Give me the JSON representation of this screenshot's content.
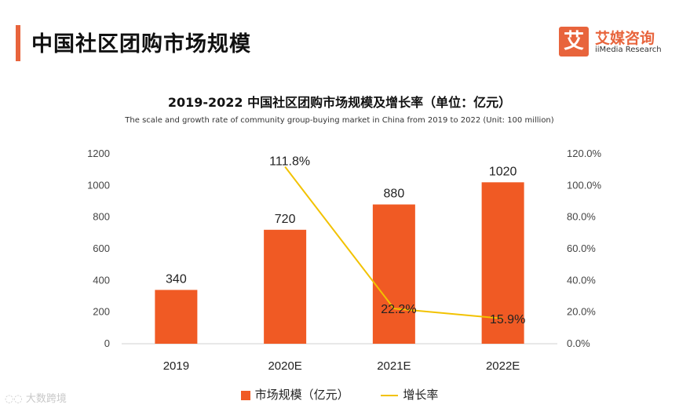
{
  "header": {
    "title": "中国社区团购市场规模"
  },
  "brand": {
    "logo_char": "艾",
    "name": "艾媒咨询",
    "sub": "iiMedia Research"
  },
  "chart_data": {
    "type": "bar+line",
    "title": "2019-2022 中国社区团购市场规模及增长率（单位：亿元）",
    "subtitle": "The scale and growth rate of community group-buying market in China from 2019 to 2022 (Unit: 100 million)",
    "categories": [
      "2019",
      "2020E",
      "2021E",
      "2022E"
    ],
    "series": [
      {
        "name": "市场规模（亿元）",
        "type": "bar",
        "axis": "left",
        "color": "#f05a24",
        "values": [
          340,
          720,
          880,
          1020
        ],
        "labels": [
          "340",
          "720",
          "880",
          "1020"
        ]
      },
      {
        "name": "增长率",
        "type": "line",
        "axis": "right",
        "color": "#f2c200",
        "values": [
          null,
          111.8,
          22.2,
          15.9
        ],
        "labels": [
          "",
          "111.8%",
          "22.2%",
          "15.9%"
        ]
      }
    ],
    "y_left": {
      "min": 0,
      "max": 1200,
      "ticks": [
        "0",
        "200",
        "400",
        "600",
        "800",
        "1000",
        "1200"
      ]
    },
    "y_right": {
      "min": 0,
      "max": 120,
      "ticks": [
        "0.0%",
        "20.0%",
        "40.0%",
        "60.0%",
        "80.0%",
        "100.0%",
        "120.0%"
      ]
    },
    "grid": false
  },
  "legend": {
    "bar_label": "市场规模（亿元）",
    "line_label": "增长率"
  },
  "watermark": "大数跨境"
}
